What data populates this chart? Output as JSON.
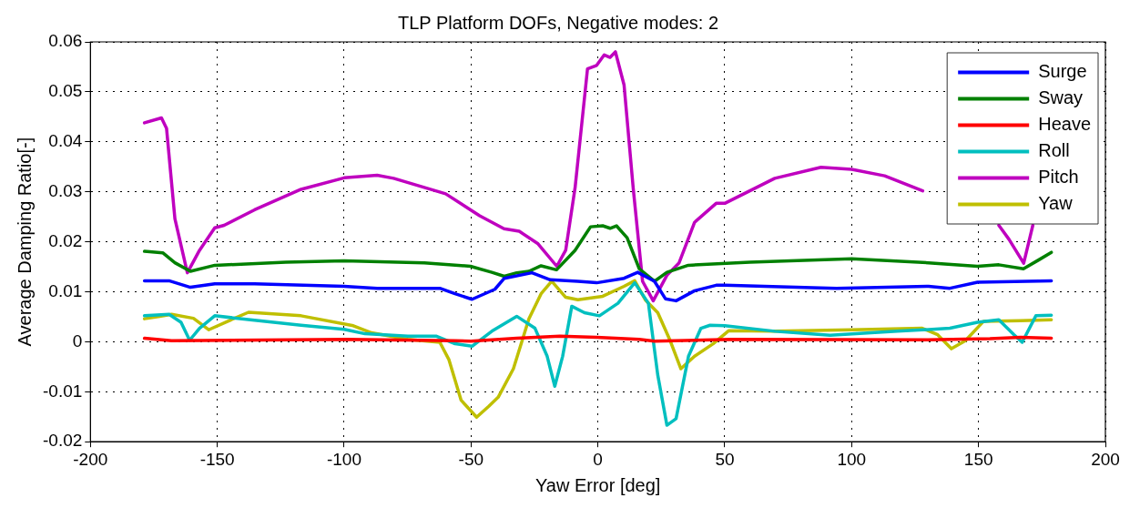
{
  "chart_data": {
    "type": "line",
    "title": "TLP Platform DOFs, Negative modes: 2",
    "xlabel": "Yaw Error [deg]",
    "ylabel": "Average Damping Ratio[-]",
    "xlim": [
      -200,
      200
    ],
    "xticks": [
      -200,
      -150,
      -100,
      -50,
      0,
      50,
      100,
      150,
      200
    ],
    "ylim": [
      -0.02,
      0.06
    ],
    "yticks": [
      -0.02,
      -0.01,
      0,
      0.01,
      0.02,
      0.03,
      0.04,
      0.05,
      0.06
    ],
    "grid": true,
    "legend": "top right",
    "marker": "none",
    "line_style": "solid",
    "series": [
      {
        "name": "Surge",
        "color": "#0000ff",
        "x": [
          -178.7,
          -169,
          -160.6,
          -151,
          -135.3,
          -100,
          -87,
          -62.3,
          -56.3,
          -49.6,
          -40.6,
          -36.9,
          -26,
          -18.8,
          -7.9,
          -0.5,
          10.3,
          15.7,
          22.3,
          26.6,
          30.8,
          38.1,
          46.6,
          50,
          94,
          130.3,
          138.7,
          149.6,
          178.7
        ],
        "values": [
          0.0122,
          0.0122,
          0.0109,
          0.0116,
          0.0116,
          0.0111,
          0.0107,
          0.0107,
          0.0096,
          0.0085,
          0.0105,
          0.0127,
          0.0138,
          0.0124,
          0.0121,
          0.0118,
          0.0127,
          0.0139,
          0.0121,
          0.0086,
          0.0082,
          0.0102,
          0.0113,
          0.0113,
          0.0107,
          0.0111,
          0.0107,
          0.0119,
          0.0122
        ]
      },
      {
        "name": "Sway",
        "color": "#008000",
        "x": [
          -178.7,
          -171.5,
          -166.7,
          -160.6,
          -151,
          -123,
          -100,
          -68.4,
          -50.2,
          -41.8,
          -36.9,
          -32,
          -27.2,
          -22.4,
          -16.3,
          -9,
          -2.9,
          1.9,
          4.8,
          7.3,
          11.5,
          16.3,
          22.3,
          27.2,
          35.6,
          59.9,
          100,
          130.3,
          149.6,
          158,
          167.7,
          173.8,
          178.7
        ],
        "values": [
          0.0181,
          0.0178,
          0.0158,
          0.0141,
          0.0153,
          0.0159,
          0.0162,
          0.0158,
          0.0151,
          0.0139,
          0.0131,
          0.0138,
          0.0141,
          0.0152,
          0.0144,
          0.0183,
          0.023,
          0.0232,
          0.0227,
          0.0232,
          0.0208,
          0.0146,
          0.0121,
          0.0139,
          0.0153,
          0.0159,
          0.0166,
          0.0158,
          0.0151,
          0.0154,
          0.0146,
          0.0164,
          0.0179
        ]
      },
      {
        "name": "Heave",
        "color": "#ff0000",
        "x": [
          -178.7,
          -168,
          -99,
          -56.3,
          -50,
          -32,
          -15,
          -0.5,
          16.3,
          22.3,
          52.7,
          130,
          154.5,
          166.6,
          178.7
        ],
        "values": [
          0.0007,
          0.0002,
          0.0005,
          0.0002,
          0.0001,
          0.0007,
          0.0011,
          0.0009,
          0.0005,
          0.0001,
          0.0005,
          0.0004,
          0.0006,
          0.0009,
          0.0007
        ]
      },
      {
        "name": "Roll",
        "color": "#00bfbf",
        "x": [
          -178.7,
          -169,
          -164.3,
          -160.9,
          -157,
          -151,
          -135.3,
          -117,
          -100,
          -91.8,
          -74.9,
          -63.6,
          -56.3,
          -49.6,
          -41.8,
          -32,
          -24.8,
          -20,
          -17,
          -13.9,
          -10.3,
          -5.3,
          0.6,
          7.9,
          14.5,
          19.9,
          23.6,
          27.2,
          30.8,
          35.7,
          40.6,
          44.2,
          50,
          69.7,
          91.5,
          118,
          138.7,
          149.6,
          158,
          164,
          167.2,
          172.6,
          178.7
        ],
        "values": [
          0.0052,
          0.0055,
          0.0039,
          0.0003,
          0.0027,
          0.0052,
          0.0043,
          0.0033,
          0.0025,
          0.0016,
          0.0011,
          0.0011,
          -0.0004,
          -0.0009,
          0.0021,
          0.0051,
          0.0027,
          -0.0029,
          -0.0089,
          -0.0029,
          0.0071,
          0.0058,
          0.0052,
          0.0077,
          0.0118,
          0.0077,
          -0.0067,
          -0.0167,
          -0.0154,
          -0.0029,
          0.0027,
          0.0033,
          0.0032,
          0.0021,
          0.0013,
          0.0021,
          0.0027,
          0.0039,
          0.0044,
          0.0014,
          -0.0001,
          0.0052,
          0.0053
        ]
      },
      {
        "name": "Pitch",
        "color": "#bf00bf",
        "x": [
          -178.7,
          -172,
          -170,
          -166.7,
          -161.8,
          -157,
          -151,
          -147.3,
          -135.3,
          -117,
          -100,
          -87,
          -80.5,
          -60,
          -46.6,
          -37,
          -31,
          -23.6,
          -16.2,
          -12.7,
          -9,
          -4.1,
          -0.5,
          2.5,
          4.8,
          6.9,
          10.3,
          13.9,
          17.6,
          21.8,
          27.2,
          32,
          38.1,
          46.6,
          50,
          69.7,
          87.9,
          100,
          113,
          128,
          144,
          158,
          162,
          167.8,
          171.4
        ],
        "values": [
          0.0438,
          0.0448,
          0.0427,
          0.0246,
          0.0138,
          0.0183,
          0.0228,
          0.0233,
          0.0264,
          0.0305,
          0.0328,
          0.0333,
          0.0327,
          0.0296,
          0.0252,
          0.0226,
          0.0221,
          0.0196,
          0.0151,
          0.0183,
          0.0308,
          0.0546,
          0.0553,
          0.0574,
          0.0569,
          0.058,
          0.0514,
          0.0308,
          0.0121,
          0.0082,
          0.0133,
          0.0158,
          0.0239,
          0.0277,
          0.0277,
          0.0327,
          0.0349,
          0.0345,
          0.0332,
          0.0302,
          null,
          0.0233,
          0.0205,
          0.0157,
          0.0233
        ]
      },
      {
        "name": "Yaw",
        "color": "#bfbf00",
        "x": [
          -178.7,
          -172.7,
          -168,
          -159.4,
          -153.4,
          -145,
          -137.7,
          -117,
          -96.4,
          -89.2,
          -74.9,
          -62.3,
          -58.7,
          -53.9,
          -47.8,
          -43,
          -39.3,
          -33.3,
          -27.2,
          -22.4,
          -18.2,
          -12.7,
          -7.9,
          1.9,
          10.3,
          14.5,
          18.8,
          23.6,
          28.5,
          32.7,
          38.1,
          45.4,
          51.5,
          69.7,
          100,
          127.8,
          133.9,
          139.3,
          144.8,
          152,
          166.5,
          178.7
        ],
        "values": [
          0.0046,
          0.0051,
          0.0055,
          0.0047,
          0.0024,
          0.0043,
          0.0059,
          0.0052,
          0.0032,
          0.0018,
          0.0005,
          -0.0001,
          -0.0036,
          -0.0117,
          -0.0151,
          -0.0129,
          -0.0111,
          -0.0054,
          0.0046,
          0.0096,
          0.0121,
          0.0089,
          0.0084,
          0.0091,
          0.0111,
          0.0122,
          0.0083,
          0.0058,
          0.0002,
          -0.0054,
          -0.0029,
          -0.0004,
          0.0022,
          0.0021,
          0.0024,
          0.0027,
          0.0014,
          -0.0014,
          0.0002,
          0.0041,
          0.0042,
          0.0044
        ]
      }
    ]
  }
}
